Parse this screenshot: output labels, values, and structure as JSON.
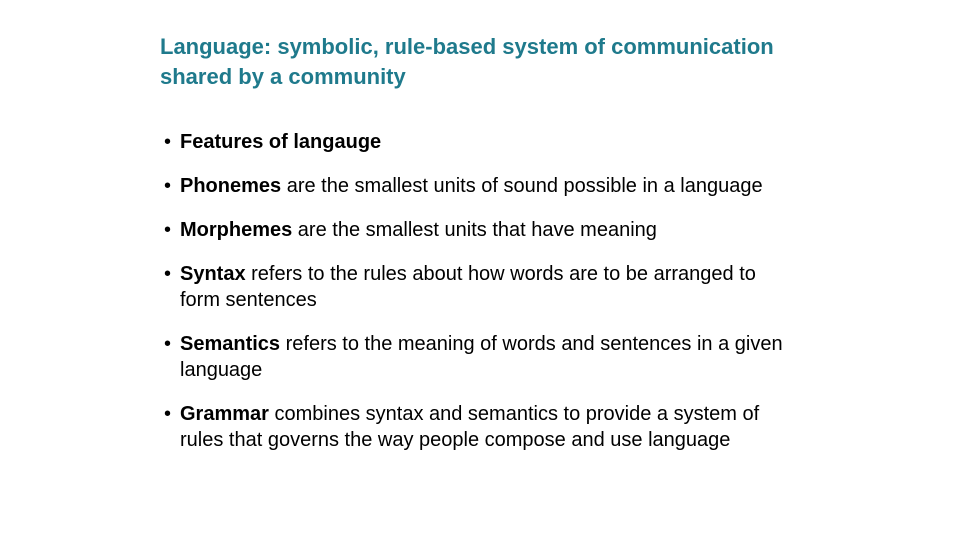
{
  "slide": {
    "title_color": "#1f7a8c",
    "background_color": "#ffffff",
    "text_color": "#000000",
    "title_fontsize": 22,
    "body_fontsize": 20,
    "title": "Language: symbolic, rule-based system of communication shared by a community",
    "bullets": [
      {
        "bold": "Features of langauge",
        "rest": ""
      },
      {
        "bold": "Phonemes",
        "rest": " are the smallest units of sound possible in a language"
      },
      {
        "bold": "Morphemes",
        "rest": " are the smallest units that have meaning"
      },
      {
        "bold": "Syntax",
        "rest": " refers to the rules about how words are to be arranged to form sentences"
      },
      {
        "bold": "Semantics",
        "rest": " refers to the meaning of words and sentences in a given language"
      },
      {
        "bold": "Grammar",
        "rest": " combines syntax and semantics to provide a system of rules that governs the way people compose and use language"
      }
    ]
  }
}
